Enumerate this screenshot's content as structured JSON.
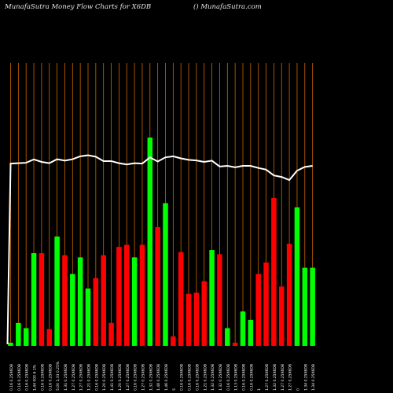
{
  "header": {
    "title": "MunafaSutra  Money Flow  Charts for X6DB",
    "site": "() MunafaSutra.com"
  },
  "chart_data": {
    "type": "bar",
    "colors": {
      "up": "#00ff00",
      "down": "#ff0000",
      "line": "#ffffff",
      "grid": "#cc6600",
      "background": "#000000"
    },
    "ylim": [
      0,
      100
    ],
    "bars": [
      {
        "value": 1.5,
        "color": "up"
      },
      {
        "value": 11,
        "color": "up"
      },
      {
        "value": 8.5,
        "color": "up"
      },
      {
        "value": 44.5,
        "color": "up"
      },
      {
        "value": 44.5,
        "color": "down"
      },
      {
        "value": 8,
        "color": "down"
      },
      {
        "value": 52.5,
        "color": "up"
      },
      {
        "value": 43.5,
        "color": "down"
      },
      {
        "value": 34.5,
        "color": "up"
      },
      {
        "value": 42.5,
        "color": "up"
      },
      {
        "value": 27.5,
        "color": "up"
      },
      {
        "value": 32.5,
        "color": "down"
      },
      {
        "value": 43.5,
        "color": "down"
      },
      {
        "value": 11,
        "color": "down"
      },
      {
        "value": 47.5,
        "color": "down"
      },
      {
        "value": 48.5,
        "color": "down"
      },
      {
        "value": 42.5,
        "color": "up"
      },
      {
        "value": 48.5,
        "color": "down"
      },
      {
        "value": 100,
        "color": "up"
      },
      {
        "value": 57,
        "color": "down"
      },
      {
        "value": 68.5,
        "color": "up"
      },
      {
        "value": 4.5,
        "color": "down"
      },
      {
        "value": 45,
        "color": "down"
      },
      {
        "value": 25,
        "color": "down"
      },
      {
        "value": 25.5,
        "color": "down"
      },
      {
        "value": 31,
        "color": "down"
      },
      {
        "value": 46,
        "color": "up"
      },
      {
        "value": 44,
        "color": "down"
      },
      {
        "value": 8.5,
        "color": "up"
      },
      {
        "value": 1.5,
        "color": "down"
      },
      {
        "value": 16.5,
        "color": "up"
      },
      {
        "value": 12.5,
        "color": "up"
      },
      {
        "value": 34.5,
        "color": "down"
      },
      {
        "value": 40,
        "color": "down"
      },
      {
        "value": 71,
        "color": "down"
      },
      {
        "value": 28.5,
        "color": "down"
      },
      {
        "value": 49,
        "color": "down"
      },
      {
        "value": 66.5,
        "color": "up"
      },
      {
        "value": 37.5,
        "color": "up"
      },
      {
        "value": 37.5,
        "color": "up"
      }
    ],
    "line": [
      87.5,
      87.7,
      87.9,
      89.5,
      88.3,
      87.7,
      89.6,
      88.9,
      89.6,
      91.0,
      91.5,
      90.8,
      88.7,
      88.7,
      87.7,
      87.1,
      87.7,
      87.5,
      90.5,
      88.5,
      90.5,
      91.0,
      90.0,
      89.3,
      89.0,
      88.3,
      88.9,
      86.1,
      86.4,
      85.7,
      86.4,
      86.4,
      85.4,
      84.6,
      81.8,
      81.1,
      79.6,
      84.1,
      85.9,
      86.4
    ],
    "line_start": 0,
    "tick_labels": [
      "0.16 0.25X6DB",
      "0.16 0.25X6DB",
      "0.16 0.25X6DB",
      "1,44 000 6 1%",
      "0.16 0.25X6DB",
      "0.16 0.25X6DB",
      "5.00 1,33 0.25%",
      "1.31 0.25X6DB",
      "1.27 0.25X6DB",
      "1.27 0.25X6DB",
      "1.21 0.25X6DB",
      "0.16 0.25X6DB",
      "1.20 0.25X6DB",
      "1.41 0.25X6DB",
      "1.20 0.25X6DB",
      "1.27 0.25X6DB",
      "0.16 0.25X6DB",
      "1.27 0.25X6DB",
      "1.32 0.25X6DB",
      "1.48 0.25X6DB",
      "1.46 0.25X6DB",
      "5",
      "0.16 0.25X6DB",
      "0.16 0.25X6DB",
      "0.16 0.25X6DB",
      "1.21 0.25X6DB",
      "1.32 0.25X6DB",
      "1.32 0.25X6DB",
      "0.16 0.25X6DB",
      "1.13 0.25X6DB",
      "0.16 0.25X6DB",
      "0.16 0.25X6DB",
      "1",
      "1.27 0.25X6DB",
      "1.32 0.25X6DB",
      "1.27 0.25X6DB",
      "1.27 0.25X6DB",
      "0",
      "1.34 0.25X6DB",
      "1.34 0.25X6DB"
    ]
  }
}
